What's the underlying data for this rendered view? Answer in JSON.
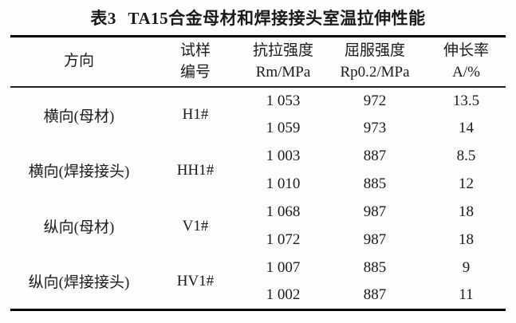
{
  "caption": {
    "label": "表3",
    "title": "TA15合金母材和焊接接头室温拉伸性能"
  },
  "columns": [
    {
      "line1": "方向",
      "line2": ""
    },
    {
      "line1": "试样",
      "line2": "编号"
    },
    {
      "line1": "抗拉强度",
      "line2": "Rm/MPa"
    },
    {
      "line1": "屈服强度",
      "line2": "Rp0.2/MPa"
    },
    {
      "line1": "伸长率",
      "line2": "A/%"
    }
  ],
  "groups": [
    {
      "direction": "横向(母材)",
      "specimen": "H1#",
      "rows": [
        [
          "1 053",
          "972",
          "13.5"
        ],
        [
          "1 059",
          "973",
          "14"
        ]
      ]
    },
    {
      "direction": "横向(焊接接头)",
      "specimen": "HH1#",
      "rows": [
        [
          "1 003",
          "887",
          "8.5"
        ],
        [
          "1 010",
          "885",
          "12"
        ]
      ]
    },
    {
      "direction": "纵向(母材)",
      "specimen": "V1#",
      "rows": [
        [
          "1 068",
          "987",
          "18"
        ],
        [
          "1 072",
          "987",
          "18"
        ]
      ]
    },
    {
      "direction": "纵向(焊接接头)",
      "specimen": "HV1#",
      "rows": [
        [
          "1 007",
          "885",
          "9"
        ],
        [
          "1 002",
          "887",
          "11"
        ]
      ]
    }
  ],
  "colors": {
    "text": "#1a1a1a",
    "rule_heavy": "#000000",
    "rule_light": "#222222",
    "background": "#fdfdfd"
  }
}
